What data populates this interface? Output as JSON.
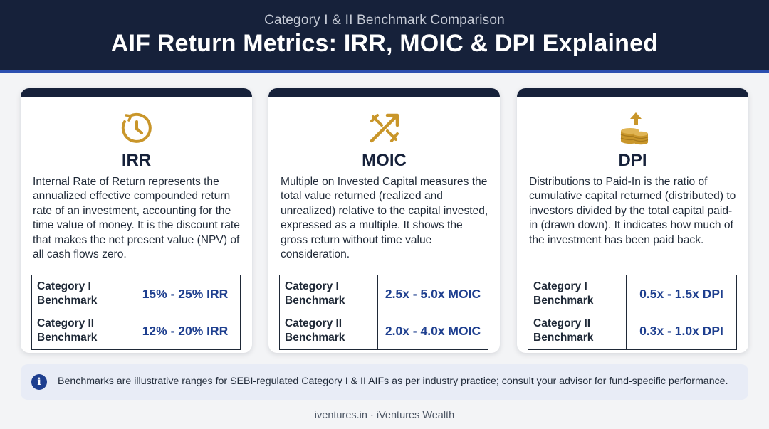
{
  "header": {
    "subtitle": "Category I & II Benchmark Comparison",
    "title": "AIF Return Metrics: IRR, MOIC & DPI Explained"
  },
  "cards": [
    {
      "icon": "clock-refresh-icon",
      "name": "IRR",
      "description": "Internal Rate of Return represents the annualized effective compounded return rate of an investment, accounting for the time value of money. It is the discount rate that makes the net present value (NPV) of all cash flows zero.",
      "benchmarks": [
        {
          "label": "Category I\nBenchmark",
          "value": "15% - 25% IRR"
        },
        {
          "label": "Category II\nBenchmark",
          "value": "12% - 20% IRR"
        }
      ]
    },
    {
      "icon": "crossed-arrows-icon",
      "name": "MOIC",
      "description": "Multiple on Invested Capital measures the total value returned (realized and unrealized) relative to the capital invested, expressed as a multiple. It shows the gross return without time value consideration.",
      "benchmarks": [
        {
          "label": "Category I\nBenchmark",
          "value": "2.5x - 5.0x MOIC"
        },
        {
          "label": "Category II\nBenchmark",
          "value": "2.0x - 4.0x MOIC"
        }
      ]
    },
    {
      "icon": "coin-stack-arrow-icon",
      "name": "DPI",
      "description": "Distributions to Paid-In is the ratio of cumulative capital returned (distributed) to investors divided by the total capital paid-in (drawn down). It indicates how much of the investment has been paid back.",
      "benchmarks": [
        {
          "label": "Category I\nBenchmark",
          "value": "0.5x - 1.5x DPI"
        },
        {
          "label": "Category II\nBenchmark",
          "value": "0.3x - 1.0x DPI"
        }
      ]
    }
  ],
  "note": {
    "icon": "info-icon",
    "icon_glyph": "i",
    "text": "Benchmarks are illustrative ranges for SEBI-regulated Category I & II AIFs as per industry practice; consult your advisor for fund-specific performance."
  },
  "footer": {
    "text": "iventures.in · iVentures Wealth"
  },
  "colors": {
    "header_bg": "#16213a",
    "accent_blue": "#2c4fb0",
    "value_blue": "#1e3f8f",
    "icon_gold": "#c9962a"
  }
}
